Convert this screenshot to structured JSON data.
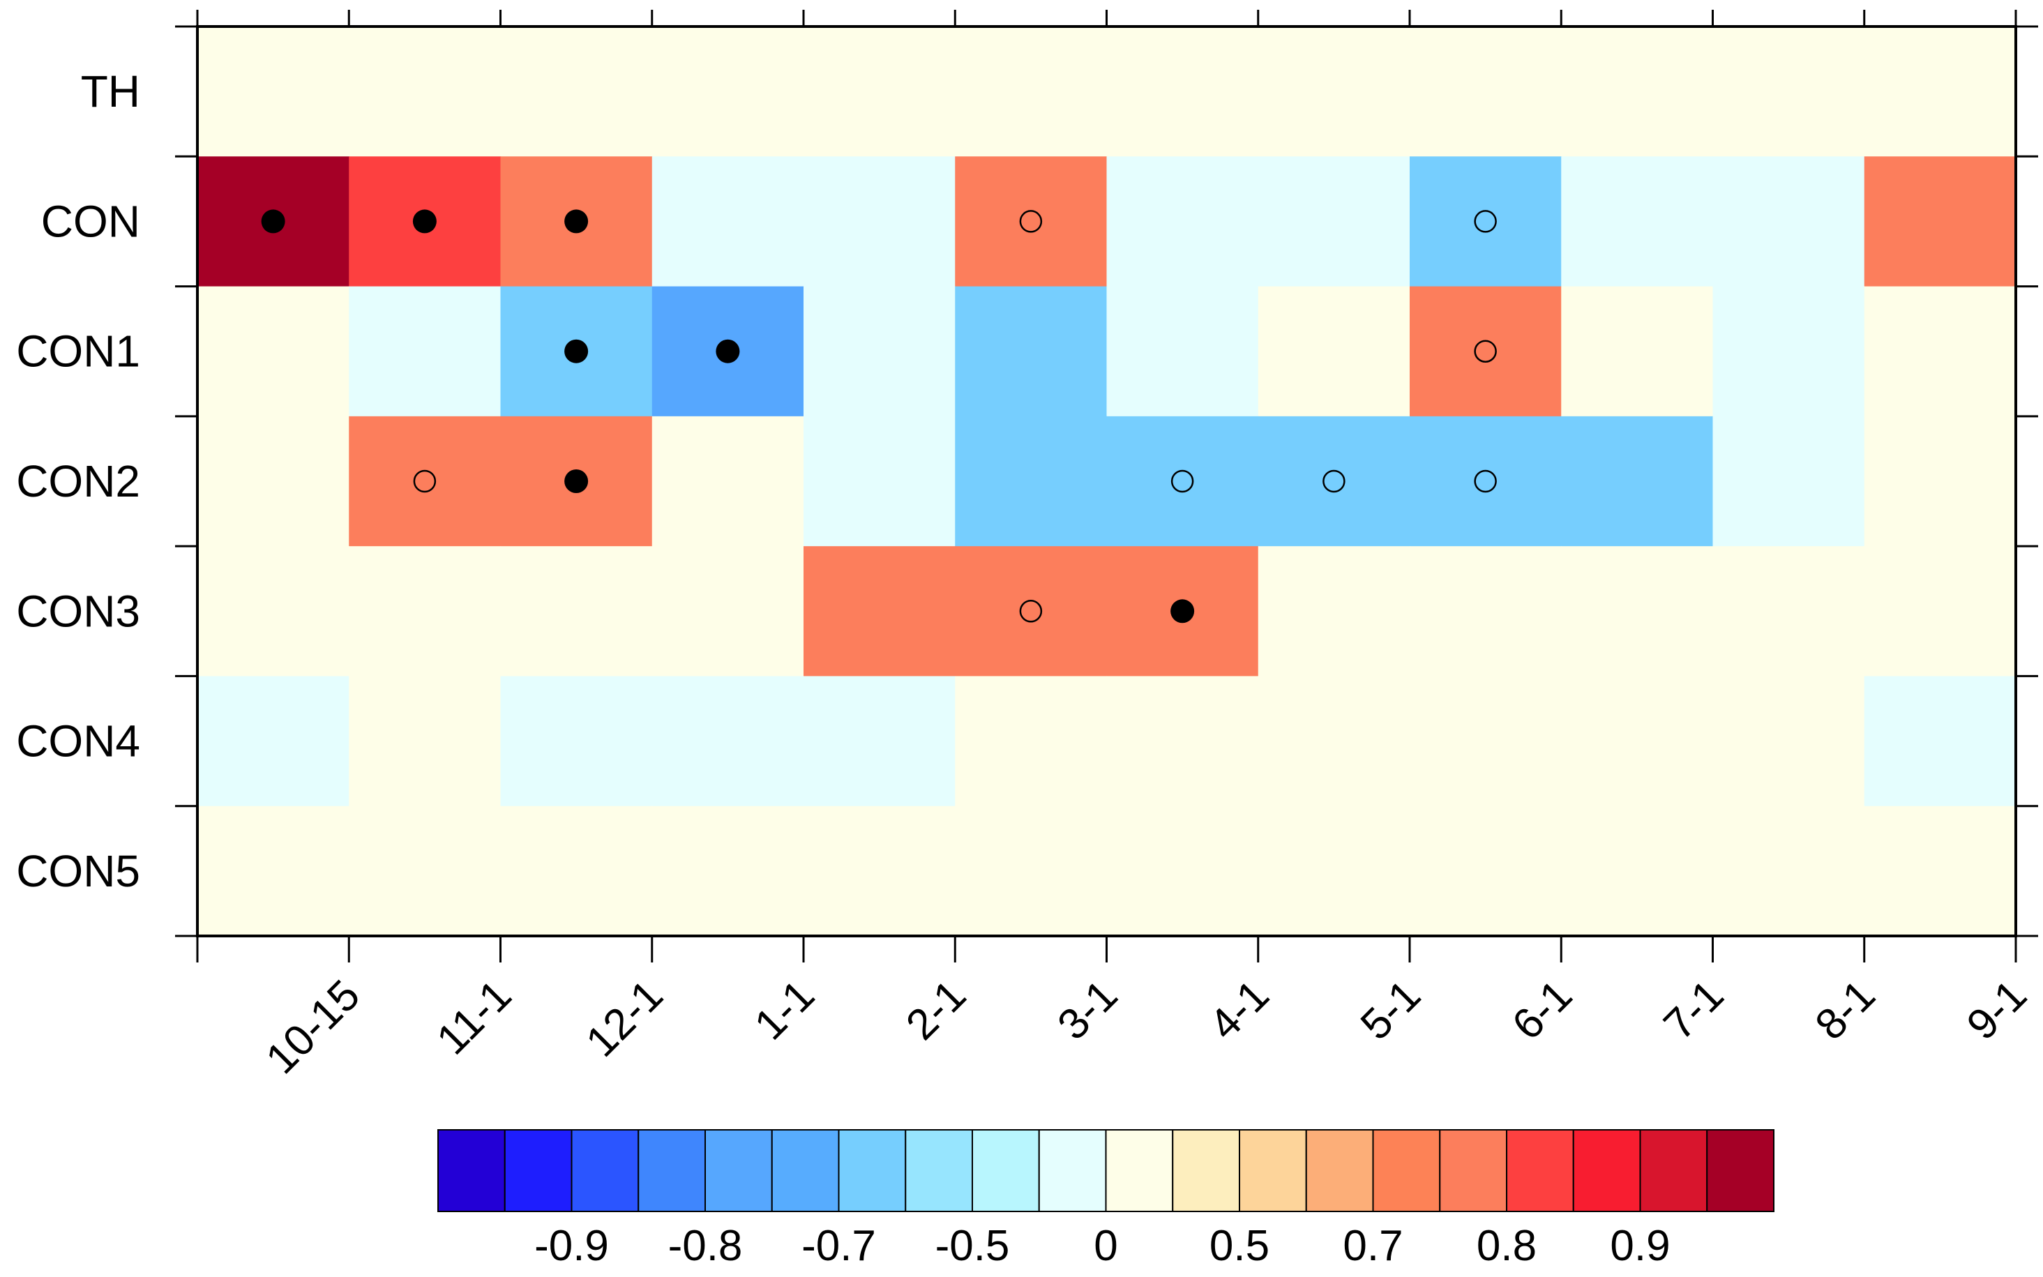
{
  "chart_data": {
    "type": "heatmap",
    "title": "",
    "xlabel": "",
    "ylabel": "",
    "x_categories": [
      "10-15",
      "11-1",
      "12-1",
      "1-1",
      "2-1",
      "3-1",
      "4-1",
      "5-1",
      "6-1",
      "7-1",
      "8-1",
      "9-1"
    ],
    "y_categories": [
      "TH",
      "CON",
      "CON1",
      "CON2",
      "CON3",
      "CON4",
      "CON5"
    ],
    "values": [
      [
        0,
        0,
        0,
        0,
        0,
        0,
        0,
        0,
        0,
        0,
        0,
        0
      ],
      [
        1.0,
        0.6,
        0.5,
        -0.1,
        -0.1,
        0.5,
        -0.1,
        -0.1,
        -0.4,
        -0.1,
        -0.1,
        0.5
      ],
      [
        0,
        -0.1,
        -0.4,
        -0.6,
        -0.1,
        -0.4,
        -0.1,
        0,
        0.5,
        0,
        -0.1,
        0
      ],
      [
        0,
        0.5,
        0.5,
        0,
        -0.1,
        -0.4,
        -0.4,
        -0.4,
        -0.4,
        -0.4,
        -0.1,
        0
      ],
      [
        0,
        0,
        0,
        0,
        0.5,
        0.5,
        0.5,
        0,
        0,
        0,
        0,
        0
      ],
      [
        -0.1,
        0,
        -0.1,
        -0.1,
        -0.1,
        0,
        0,
        0,
        0,
        0,
        0,
        -0.1
      ],
      [
        0,
        0,
        0,
        0,
        0,
        0,
        0,
        0,
        0,
        0,
        0,
        0
      ]
    ],
    "markers": [
      {
        "row": "CON",
        "col": "10-15",
        "type": "filled"
      },
      {
        "row": "CON",
        "col": "11-1",
        "type": "filled"
      },
      {
        "row": "CON",
        "col": "12-1",
        "type": "filled"
      },
      {
        "row": "CON",
        "col": "3-1",
        "type": "open"
      },
      {
        "row": "CON",
        "col": "6-1",
        "type": "open"
      },
      {
        "row": "CON1",
        "col": "12-1",
        "type": "filled"
      },
      {
        "row": "CON1",
        "col": "1-1",
        "type": "filled"
      },
      {
        "row": "CON1",
        "col": "6-1",
        "type": "open"
      },
      {
        "row": "CON2",
        "col": "11-1",
        "type": "open"
      },
      {
        "row": "CON2",
        "col": "12-1",
        "type": "filled"
      },
      {
        "row": "CON2",
        "col": "4-1",
        "type": "open"
      },
      {
        "row": "CON2",
        "col": "5-1",
        "type": "open"
      },
      {
        "row": "CON2",
        "col": "6-1",
        "type": "open"
      },
      {
        "row": "CON3",
        "col": "3-1",
        "type": "open"
      },
      {
        "row": "CON3",
        "col": "4-1",
        "type": "filled"
      }
    ],
    "colorbar": {
      "colors": [
        "#2300d6",
        "#1e1efe",
        "#2b55ff",
        "#3f86fd",
        "#56a7fe",
        "#57acfe",
        "#76cefe",
        "#97e5fe",
        "#b8f6fe",
        "#e5fefe",
        "#fefee8",
        "#fdeebe",
        "#fdd49a",
        "#fcae78",
        "#fd8256",
        "#fc7e5c",
        "#fd4040",
        "#f81d30",
        "#d8152d",
        "#a50026"
      ],
      "tick_labels": [
        {
          "label": "-0.9",
          "boundary": 2
        },
        {
          "label": "-0.8",
          "boundary": 4
        },
        {
          "label": "-0.7",
          "boundary": 6
        },
        {
          "label": "-0.5",
          "boundary": 8
        },
        {
          "label": "0",
          "boundary": 10
        },
        {
          "label": "0.5",
          "boundary": 12
        },
        {
          "label": "0.7",
          "boundary": 14
        },
        {
          "label": "0.8",
          "boundary": 16
        },
        {
          "label": "0.9",
          "boundary": 18
        }
      ]
    },
    "legend_placement": "bottom",
    "grid": false
  }
}
